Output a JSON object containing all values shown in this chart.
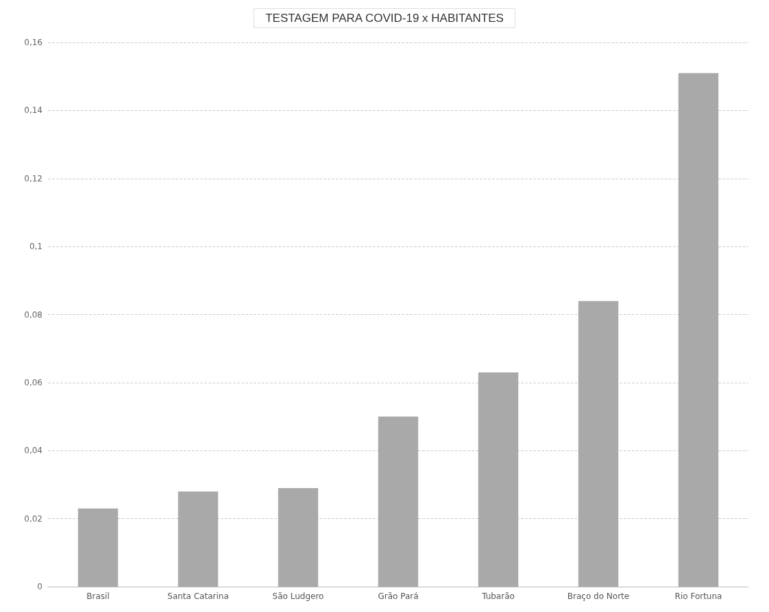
{
  "chart_data": {
    "type": "bar",
    "title": "TESTAGEM PARA COVID-19 x HABITANTES",
    "categories": [
      "Brasil",
      "Santa Catarina",
      "São Ludgero",
      "Grão Pará",
      "Tubarão",
      "Braço do Norte",
      "Rio Fortuna"
    ],
    "values": [
      0.023,
      0.028,
      0.029,
      0.05,
      0.063,
      0.084,
      0.151
    ],
    "color": "#a9a9a9",
    "ylim": [
      0,
      0.16
    ],
    "yticks": [
      0,
      {
        "value": 0.02,
        "label": "0,02"
      },
      {
        "value": 0.04,
        "label": "0,04"
      },
      {
        "value": 0.06,
        "label": "0,06"
      },
      {
        "value": 0.08,
        "label": "0,08"
      },
      {
        "value": 0.1,
        "label": "0,1"
      },
      {
        "value": 0.12,
        "label": "0,12"
      },
      {
        "value": 0.14,
        "label": "0,14"
      },
      {
        "value": 0.16,
        "label": "0,16"
      }
    ],
    "grid": "y"
  }
}
